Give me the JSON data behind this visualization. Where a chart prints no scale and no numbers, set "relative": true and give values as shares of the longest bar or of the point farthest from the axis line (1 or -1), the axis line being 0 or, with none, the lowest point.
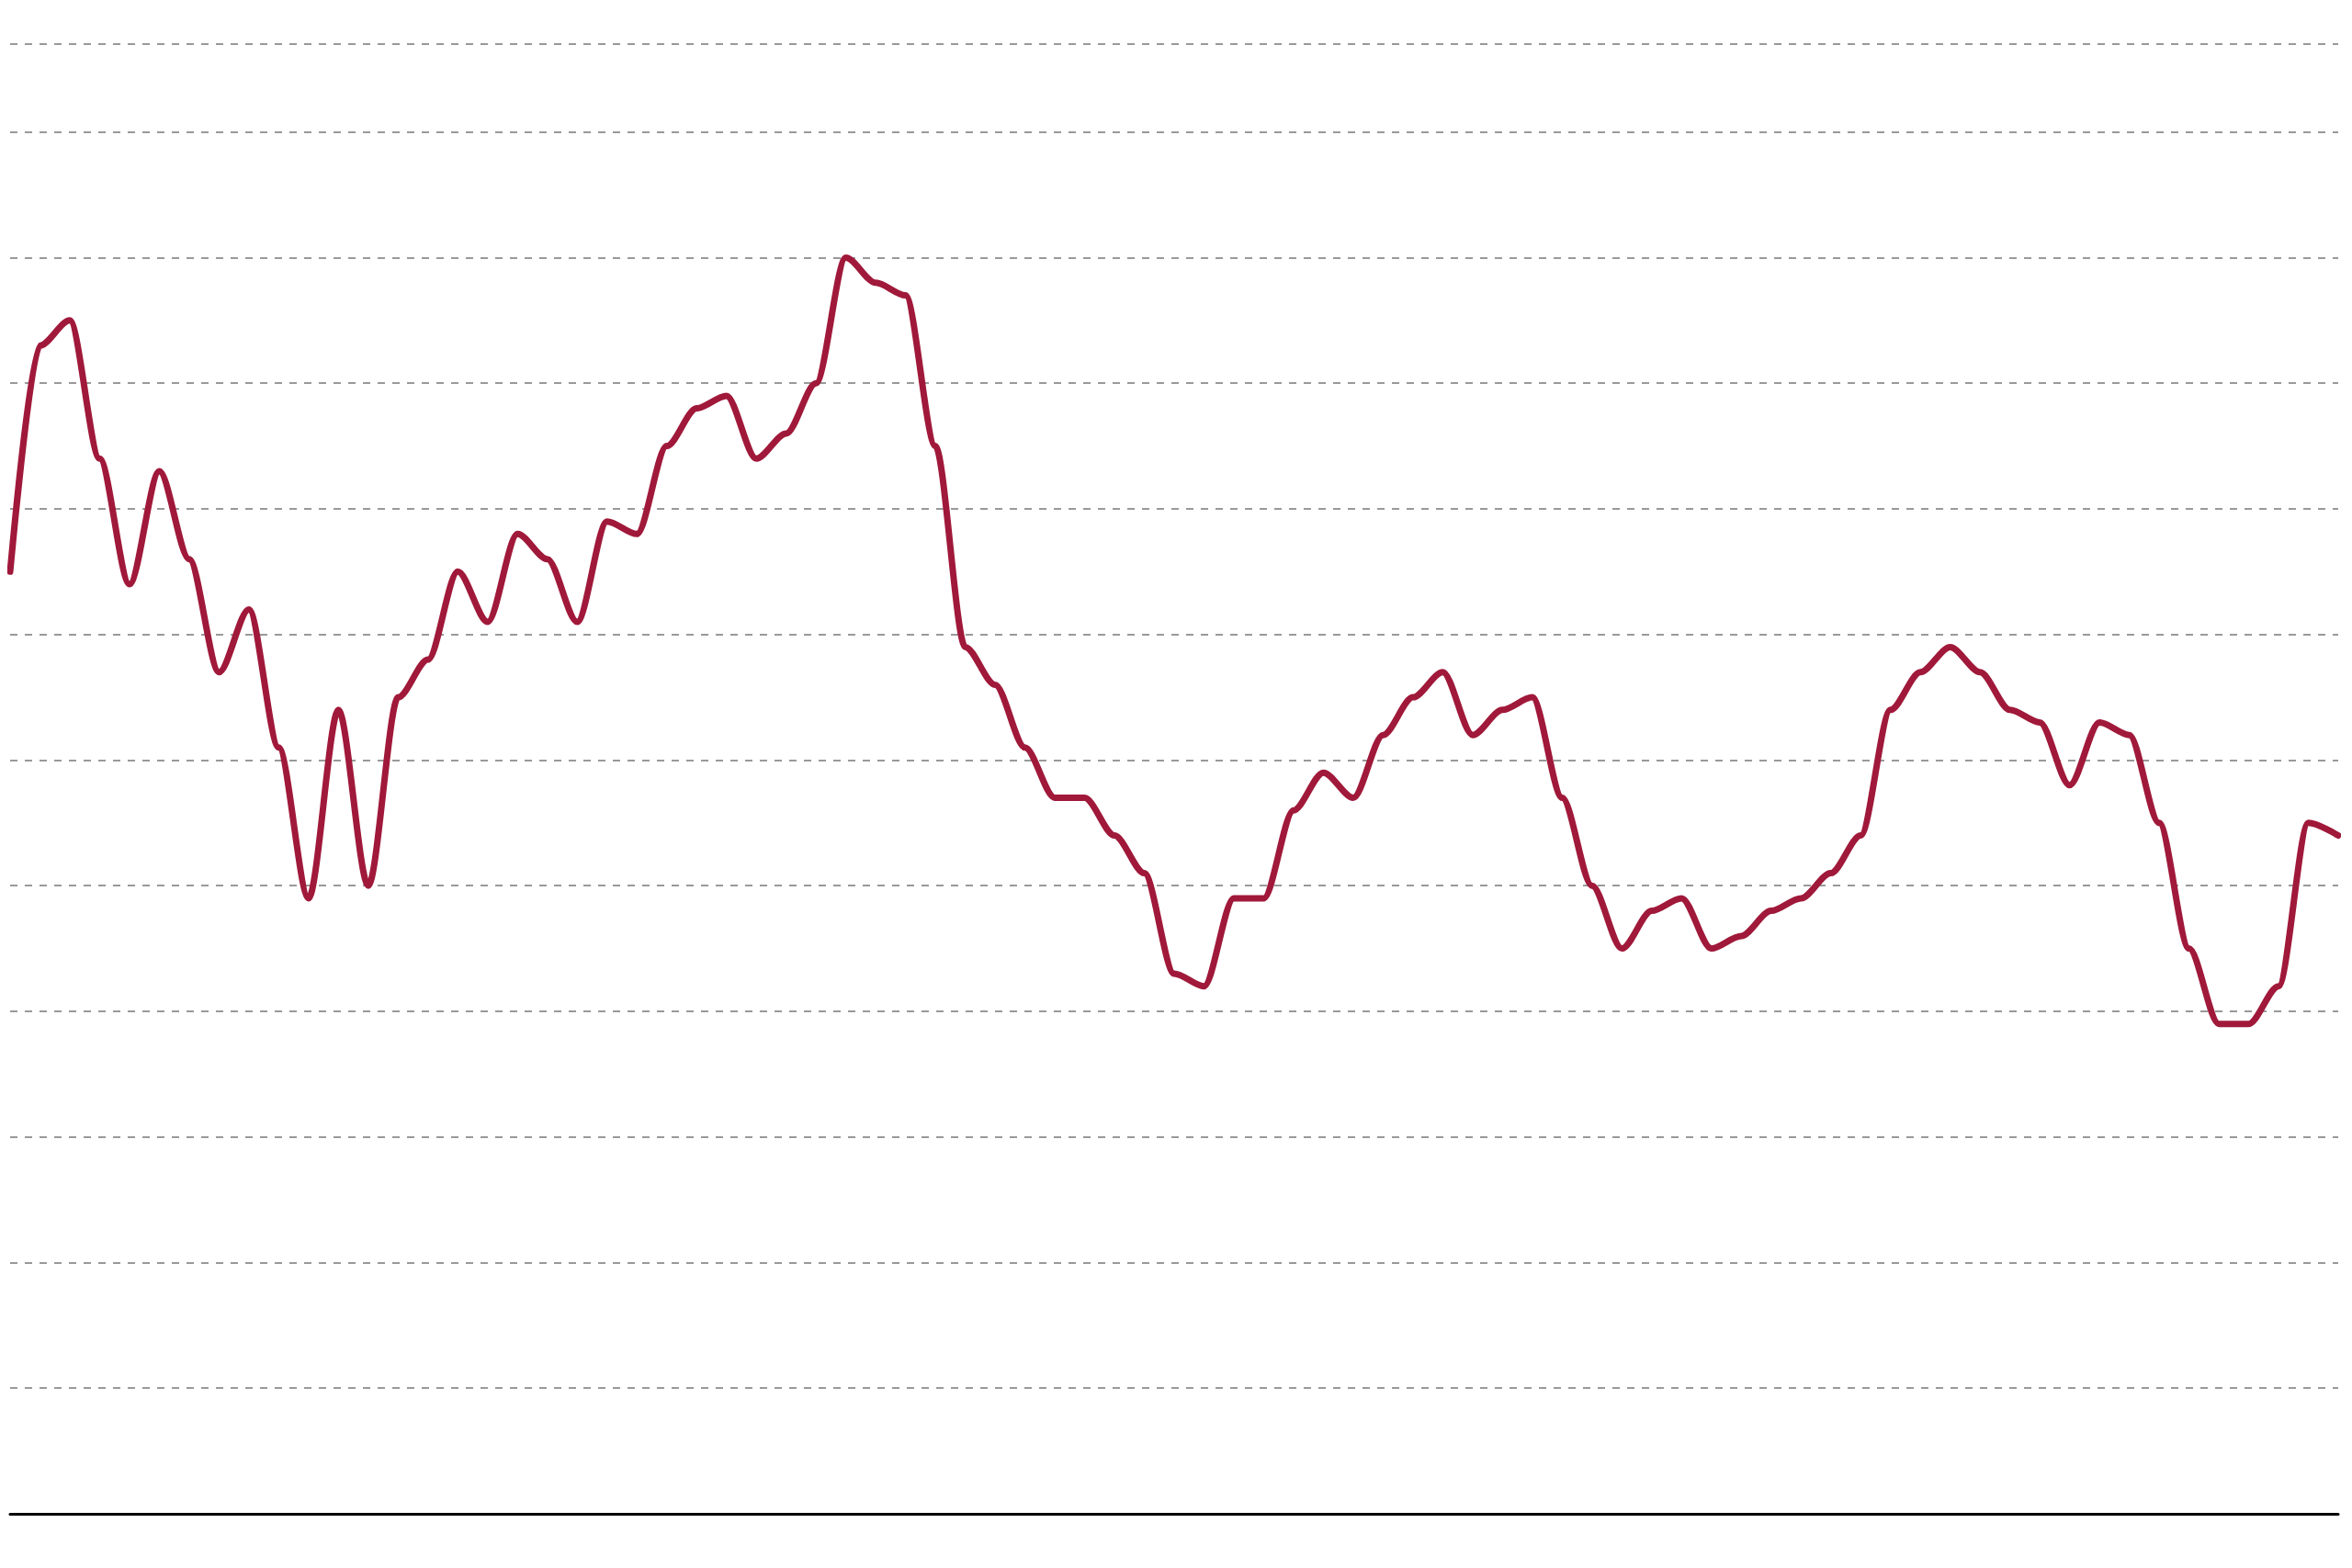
{
  "chart_data": {
    "type": "line",
    "relative": true,
    "grid": "y",
    "marker": "none",
    "line_style": "solid",
    "categories": [
      null,
      null,
      null,
      null,
      null,
      null,
      null,
      null,
      null,
      null,
      null,
      null,
      null,
      null,
      null,
      null,
      null,
      null,
      null,
      null,
      null,
      null,
      null,
      null,
      null,
      null,
      null,
      null,
      null,
      null,
      null,
      null,
      null,
      null,
      null,
      null,
      null,
      null,
      null,
      null,
      null,
      null,
      null,
      null,
      null,
      null,
      null,
      null,
      null,
      null,
      null,
      null,
      null,
      null,
      null,
      null,
      null,
      null,
      null,
      null,
      null,
      null,
      null,
      null,
      null,
      null,
      null,
      null,
      null,
      null,
      null,
      null,
      null,
      null,
      null,
      null,
      null,
      null,
      null
    ],
    "series": [
      {
        "color": "#a0193a",
        "values": [
          0.75,
          0.93,
          0.95,
          0.84,
          0.74,
          0.83,
          0.76,
          0.67,
          0.72,
          0.61,
          0.49,
          0.64,
          0.5,
          0.65,
          0.68,
          0.75,
          0.71,
          0.78,
          0.76,
          0.71,
          0.79,
          0.78,
          0.85,
          0.88,
          0.89,
          0.84,
          0.86,
          0.9,
          1,
          0.98,
          0.97,
          0.85,
          0.69,
          0.66,
          0.61,
          0.57,
          0.57,
          0.54,
          0.51,
          0.43,
          0.42,
          0.49,
          0.49,
          0.56,
          0.59,
          0.57,
          0.62,
          0.65,
          0.67,
          0.62,
          0.64,
          0.65,
          0.57,
          0.5,
          0.45,
          0.48,
          0.49,
          0.45,
          0.46,
          0.48,
          0.49,
          0.51,
          0.54,
          0.64,
          0.67,
          0.69,
          0.67,
          0.64,
          0.63,
          0.58,
          0.63,
          0.62,
          0.55,
          0.45,
          0.39,
          0.39,
          0.42,
          0.55,
          0.54
        ]
      }
    ]
  }
}
